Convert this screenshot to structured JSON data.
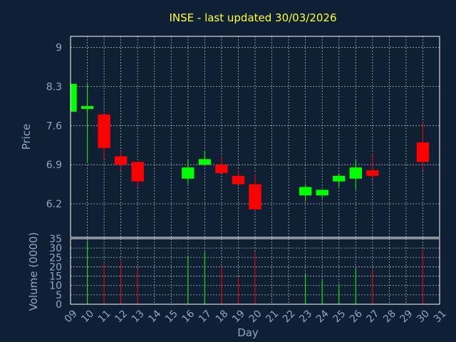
{
  "chart_data": {
    "type": "candlestick",
    "title": "INSE - last updated 30/03/2026",
    "xlabel": "Day",
    "price_panel": {
      "ylabel": "Price",
      "yticks": [
        6.2,
        6.9,
        7.6,
        8.3,
        9
      ],
      "ylim": [
        5.6,
        9.2
      ],
      "grid": true
    },
    "volume_panel": {
      "ylabel": "Volume (0000)",
      "yticks": [
        0,
        5,
        10,
        15,
        20,
        25,
        30,
        35
      ],
      "ylim": [
        0,
        35
      ],
      "grid": true
    },
    "x_ticks": [
      "09",
      "10",
      "11",
      "12",
      "13",
      "14",
      "15",
      "16",
      "17",
      "18",
      "19",
      "20",
      "21",
      "22",
      "23",
      "24",
      "25",
      "26",
      "27",
      "28",
      "29",
      "30",
      "31"
    ],
    "colors": {
      "background": "#0f2035",
      "up": "#00ff00",
      "down": "#ff0000",
      "title": "#ffff33",
      "axis_text": "#8fa6c6",
      "grid": "#ffffff"
    },
    "candles": [
      {
        "day": 9,
        "open": 7.85,
        "high": 8.35,
        "low": 7.85,
        "close": 8.35,
        "volume": 0
      },
      {
        "day": 10,
        "open": 7.9,
        "high": 8.35,
        "low": 6.95,
        "close": 7.95,
        "volume": 34
      },
      {
        "day": 11,
        "open": 7.8,
        "high": 7.8,
        "low": 7.0,
        "close": 7.2,
        "volume": 22
      },
      {
        "day": 12,
        "open": 7.05,
        "high": 7.15,
        "low": 6.8,
        "close": 6.9,
        "volume": 23
      },
      {
        "day": 13,
        "open": 6.95,
        "high": 6.95,
        "low": 6.5,
        "close": 6.6,
        "volume": 19
      },
      {
        "day": 16,
        "open": 6.65,
        "high": 7.0,
        "low": 6.55,
        "close": 6.85,
        "volume": 26
      },
      {
        "day": 17,
        "open": 6.9,
        "high": 7.15,
        "low": 6.9,
        "close": 7.0,
        "volume": 28
      },
      {
        "day": 18,
        "open": 6.9,
        "high": 7.05,
        "low": 6.75,
        "close": 6.75,
        "volume": 20
      },
      {
        "day": 19,
        "open": 6.7,
        "high": 6.8,
        "low": 6.55,
        "close": 6.55,
        "volume": 14
      },
      {
        "day": 20,
        "open": 6.55,
        "high": 6.75,
        "low": 6.1,
        "close": 6.1,
        "volume": 28
      },
      {
        "day": 23,
        "open": 6.35,
        "high": 6.55,
        "low": 6.25,
        "close": 6.5,
        "volume": 16
      },
      {
        "day": 24,
        "open": 6.35,
        "high": 6.45,
        "low": 6.3,
        "close": 6.45,
        "volume": 13
      },
      {
        "day": 25,
        "open": 6.6,
        "high": 6.75,
        "low": 6.5,
        "close": 6.7,
        "volume": 11
      },
      {
        "day": 26,
        "open": 6.65,
        "high": 7.0,
        "low": 6.45,
        "close": 6.85,
        "volume": 19
      },
      {
        "day": 27,
        "open": 6.8,
        "high": 7.1,
        "low": 6.65,
        "close": 6.7,
        "volume": 18
      },
      {
        "day": 30,
        "open": 7.3,
        "high": 7.65,
        "low": 6.8,
        "close": 6.95,
        "volume": 29
      }
    ]
  }
}
